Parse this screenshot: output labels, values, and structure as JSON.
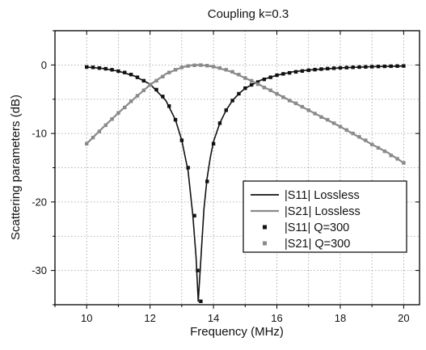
{
  "chart_data": {
    "type": "line",
    "title": "Coupling k=0.3",
    "xlabel": "Frequency (MHz)",
    "ylabel": "Scattering parameters (dB)",
    "xlim": [
      9,
      20.5
    ],
    "ylim": [
      -35,
      5
    ],
    "xticks": [
      10,
      12,
      14,
      16,
      18,
      20
    ],
    "yticks": [
      0,
      -10,
      -20,
      -30
    ],
    "grid": true,
    "legend_position": "lower-right",
    "series": [
      {
        "name": "|S11| Lossless",
        "style": "solid-line",
        "color": "#111111",
        "x": [
          10.0,
          10.5,
          11.0,
          11.5,
          12.0,
          12.5,
          12.8,
          13.0,
          13.2,
          13.35,
          13.45,
          13.52,
          13.6,
          13.7,
          13.8,
          13.9,
          14.0,
          14.2,
          14.4,
          14.6,
          14.8,
          15.0,
          15.5,
          16.0,
          16.5,
          17.0,
          18.0,
          19.0,
          20.0
        ],
        "y": [
          -0.3,
          -0.5,
          -0.9,
          -1.6,
          -2.8,
          -5.2,
          -8.0,
          -11.0,
          -15.5,
          -22.0,
          -28.0,
          -34.5,
          -28.5,
          -21.0,
          -16.5,
          -13.5,
          -11.2,
          -8.5,
          -6.6,
          -5.2,
          -4.2,
          -3.4,
          -2.2,
          -1.5,
          -1.0,
          -0.75,
          -0.42,
          -0.25,
          -0.15
        ]
      },
      {
        "name": "|S21| Lossless",
        "style": "solid-line",
        "color": "#8a8a8a",
        "x": [
          10.0,
          10.5,
          11.0,
          11.5,
          12.0,
          12.5,
          13.0,
          13.3,
          13.5,
          13.7,
          14.0,
          14.5,
          15.0,
          15.5,
          16.0,
          16.5,
          17.0,
          17.5,
          18.0,
          18.5,
          19.0,
          19.5,
          20.0
        ],
        "y": [
          -11.5,
          -9.2,
          -7.0,
          -4.9,
          -2.9,
          -1.3,
          -0.35,
          -0.05,
          0.0,
          -0.05,
          -0.25,
          -0.9,
          -1.9,
          -3.0,
          -4.2,
          -5.4,
          -6.6,
          -7.8,
          -9.0,
          -10.3,
          -11.6,
          -12.8,
          -14.3
        ]
      },
      {
        "name": "|S11| Q=300",
        "style": "square-markers",
        "color": "#111111",
        "x": [
          10.0,
          10.2,
          10.4,
          10.6,
          10.8,
          11.0,
          11.2,
          11.4,
          11.6,
          11.8,
          12.0,
          12.2,
          12.4,
          12.6,
          12.8,
          13.0,
          13.2,
          13.4,
          13.5,
          13.6,
          13.8,
          14.0,
          14.2,
          14.4,
          14.6,
          14.8,
          15.0,
          15.2,
          15.4,
          15.6,
          15.8,
          16.0,
          16.2,
          16.4,
          16.6,
          16.8,
          17.0,
          17.2,
          17.4,
          17.6,
          17.8,
          18.0,
          18.2,
          18.4,
          18.6,
          18.8,
          19.0,
          19.2,
          19.4,
          19.6,
          19.8,
          20.0
        ],
        "y": [
          -0.3,
          -0.35,
          -0.45,
          -0.55,
          -0.7,
          -0.9,
          -1.1,
          -1.4,
          -1.8,
          -2.3,
          -2.9,
          -3.6,
          -4.6,
          -6.0,
          -8.0,
          -11.0,
          -15.0,
          -22.0,
          -30.0,
          -34.5,
          -17.0,
          -11.5,
          -8.5,
          -6.6,
          -5.2,
          -4.2,
          -3.4,
          -2.9,
          -2.5,
          -2.1,
          -1.8,
          -1.5,
          -1.3,
          -1.15,
          -1.0,
          -0.88,
          -0.77,
          -0.68,
          -0.6,
          -0.53,
          -0.47,
          -0.42,
          -0.38,
          -0.34,
          -0.31,
          -0.28,
          -0.25,
          -0.22,
          -0.2,
          -0.18,
          -0.16,
          -0.15
        ]
      },
      {
        "name": "|S21| Q=300",
        "style": "square-markers",
        "color": "#8a8a8a",
        "x": [
          10.0,
          10.2,
          10.4,
          10.6,
          10.8,
          11.0,
          11.2,
          11.4,
          11.6,
          11.8,
          12.0,
          12.2,
          12.4,
          12.6,
          12.8,
          13.0,
          13.2,
          13.4,
          13.6,
          13.8,
          14.0,
          14.2,
          14.4,
          14.6,
          14.8,
          15.0,
          15.2,
          15.4,
          15.6,
          15.8,
          16.0,
          16.2,
          16.4,
          16.6,
          16.8,
          17.0,
          17.2,
          17.4,
          17.6,
          17.8,
          18.0,
          18.2,
          18.4,
          18.6,
          18.8,
          19.0,
          19.2,
          19.4,
          19.6,
          19.8,
          20.0
        ],
        "y": [
          -11.5,
          -10.6,
          -9.7,
          -8.8,
          -7.9,
          -7.0,
          -6.2,
          -5.3,
          -4.5,
          -3.7,
          -2.9,
          -2.3,
          -1.7,
          -1.1,
          -0.7,
          -0.35,
          -0.15,
          -0.05,
          -0.02,
          -0.1,
          -0.25,
          -0.45,
          -0.7,
          -1.0,
          -1.4,
          -1.9,
          -2.3,
          -2.8,
          -3.3,
          -3.7,
          -4.2,
          -4.7,
          -5.2,
          -5.6,
          -6.1,
          -6.6,
          -7.1,
          -7.6,
          -8.0,
          -8.5,
          -9.0,
          -9.5,
          -10.0,
          -10.5,
          -11.0,
          -11.6,
          -12.1,
          -12.6,
          -13.2,
          -13.7,
          -14.3
        ]
      }
    ]
  }
}
